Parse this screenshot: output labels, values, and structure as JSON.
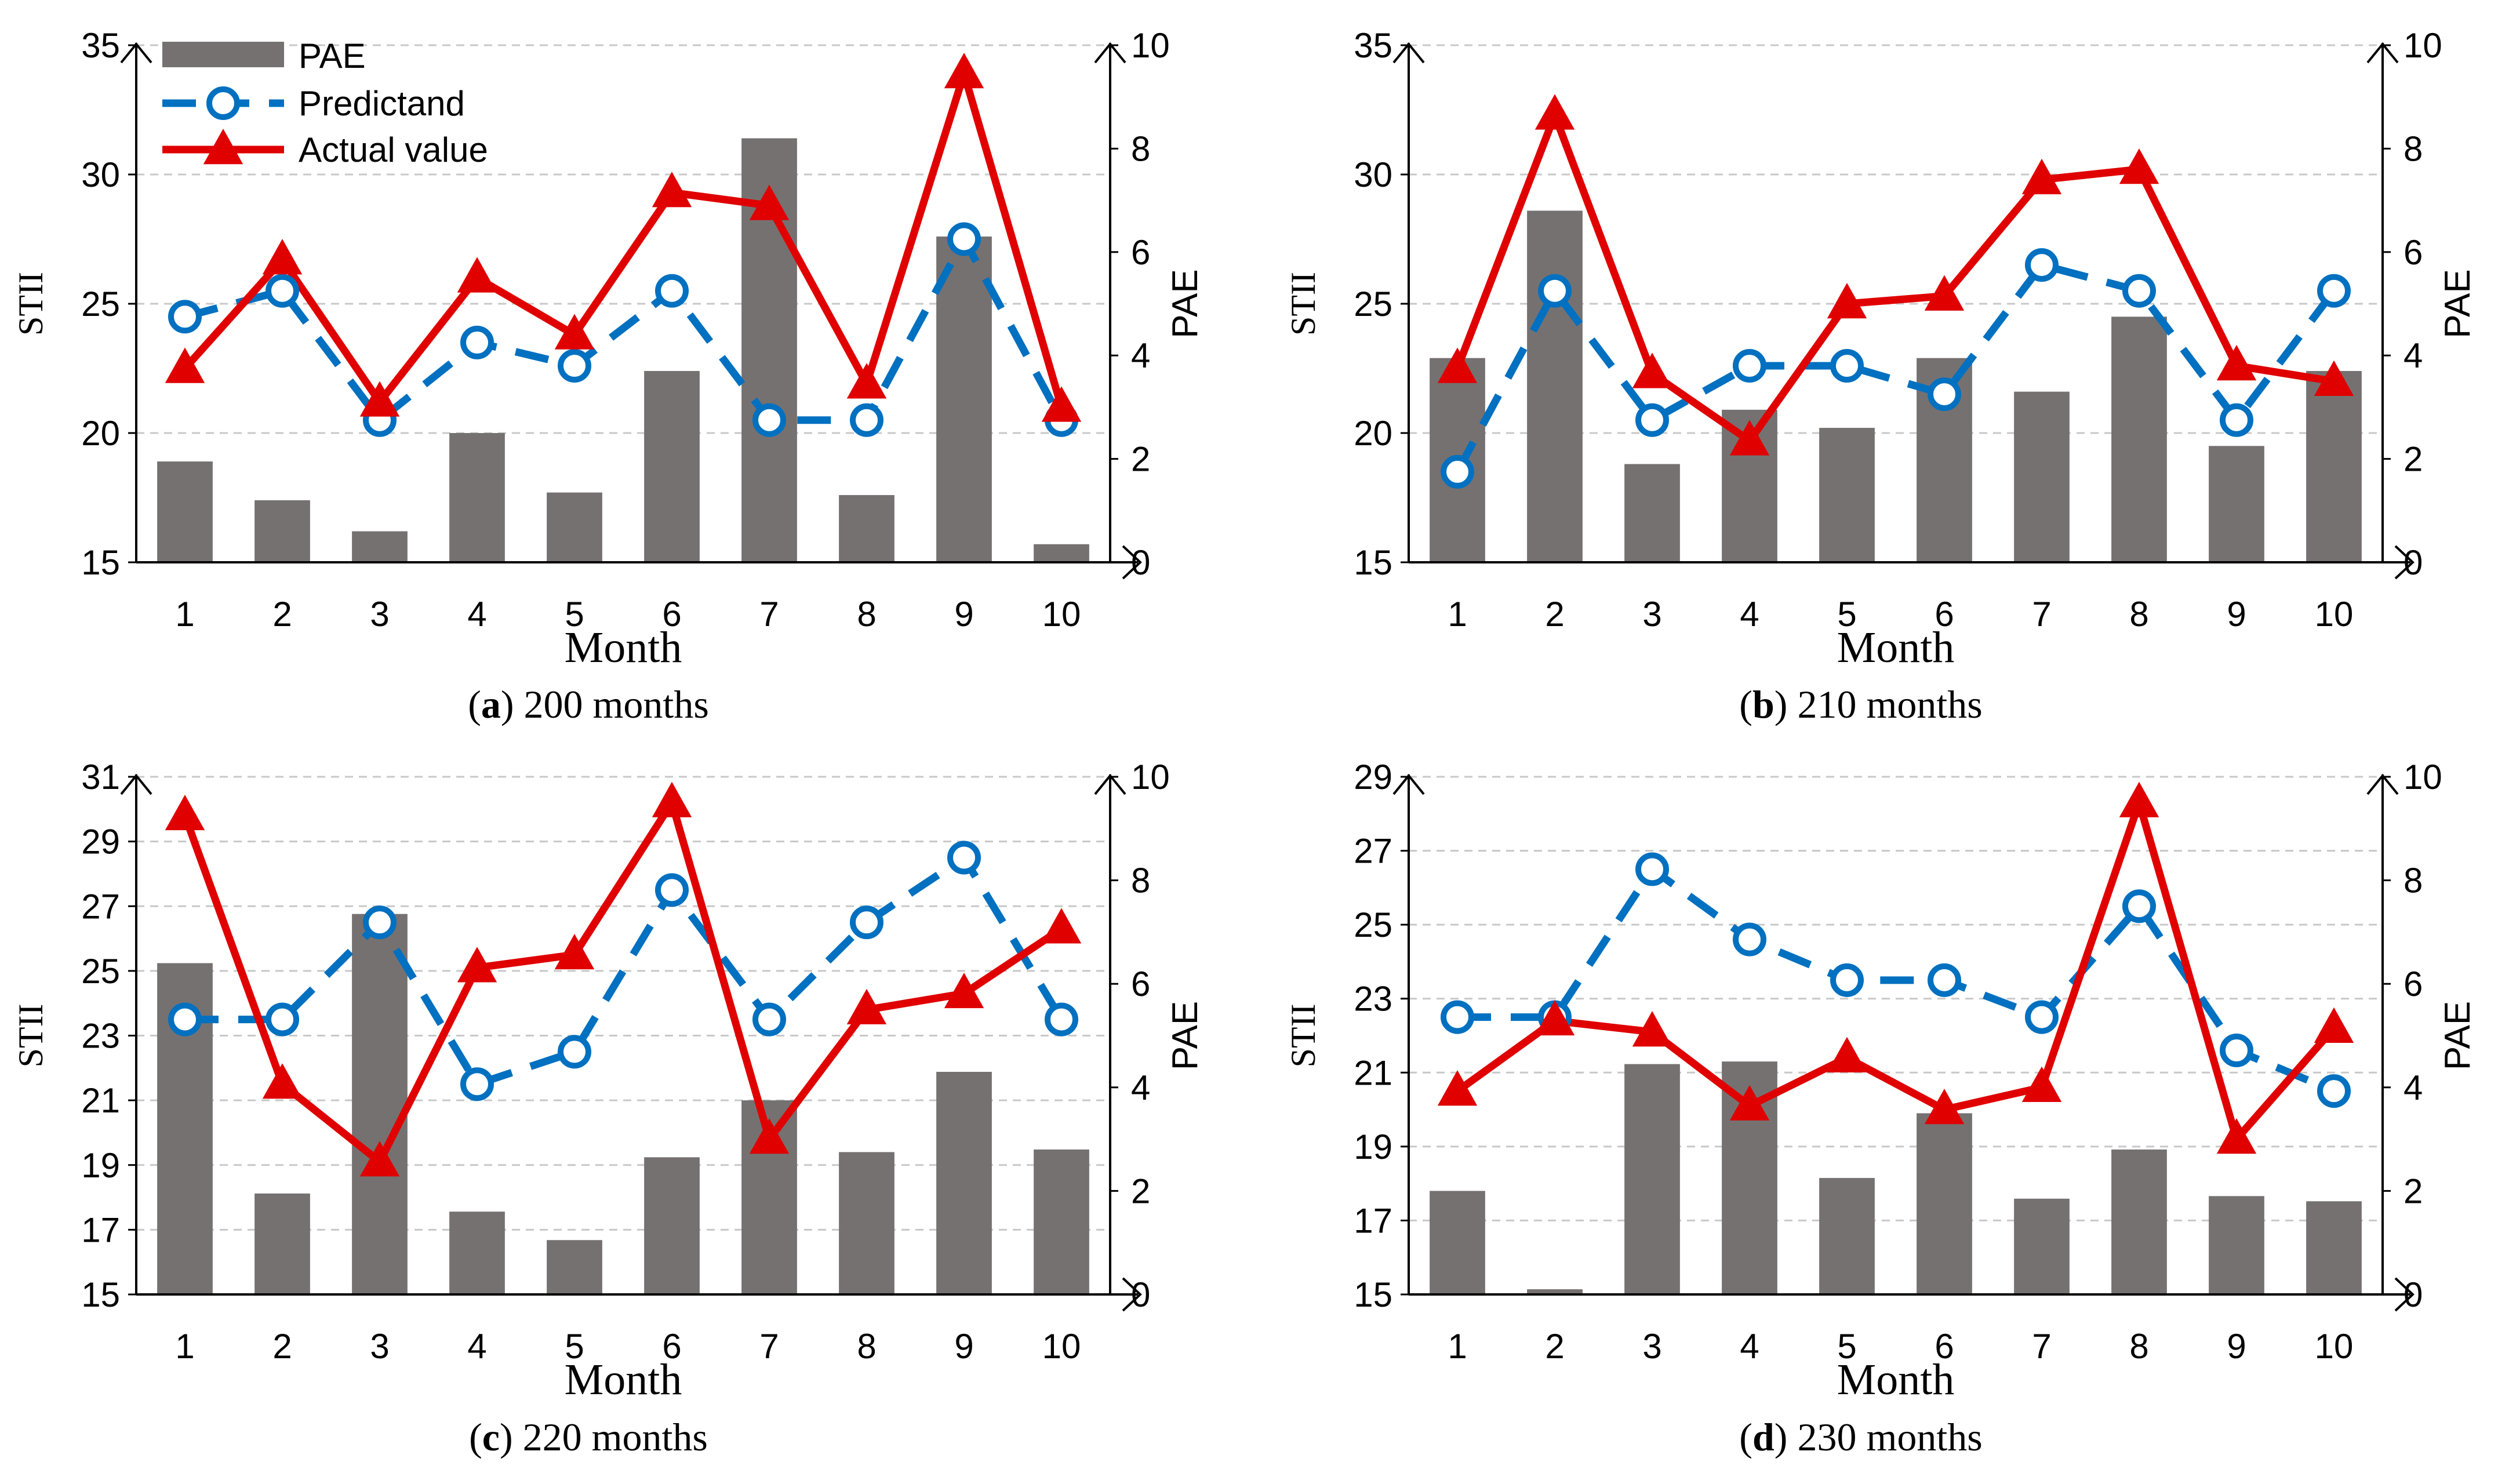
{
  "colors": {
    "bar": "#767171",
    "predictand": "#0070c0",
    "actual": "#e00000",
    "grid": "#c8c8c8",
    "axis": "#000000"
  },
  "legend": {
    "pae": "PAE",
    "predictand": "Predictand",
    "actual": "Actual value"
  },
  "chart_data": [
    {
      "type": "bar+line",
      "caption_letter": "a",
      "caption_text": " 200 months",
      "xlabel": "Month",
      "ylabel_left": "STII",
      "ylabel_right": "PAE",
      "categories": [
        "1",
        "2",
        "3",
        "4",
        "5",
        "6",
        "7",
        "8",
        "9",
        "10"
      ],
      "ylim_left": [
        15,
        35
      ],
      "yticks_left": [
        "15",
        "20",
        "25",
        "30",
        "35"
      ],
      "ylim_right": [
        0,
        10
      ],
      "yticks_right": [
        "0",
        "2",
        "4",
        "6",
        "8",
        "10"
      ],
      "series": [
        {
          "name": "PAE",
          "axis": "right",
          "kind": "bar",
          "values": [
            1.95,
            1.2,
            0.6,
            2.5,
            1.35,
            3.7,
            8.2,
            1.3,
            6.3,
            0.35
          ]
        },
        {
          "name": "Predictand",
          "axis": "left",
          "kind": "line",
          "values": [
            24.5,
            25.5,
            20.5,
            23.5,
            22.6,
            25.5,
            20.5,
            20.5,
            27.5,
            20.5
          ]
        },
        {
          "name": "Actual value",
          "axis": "left",
          "kind": "line",
          "values": [
            22.5,
            26.7,
            21.2,
            26.0,
            23.8,
            29.3,
            28.8,
            21.9,
            33.9,
            21.0
          ]
        }
      ]
    },
    {
      "type": "bar+line",
      "caption_letter": "b",
      "caption_text": " 210 months",
      "xlabel": "Month",
      "ylabel_left": "STII",
      "ylabel_right": "PAE",
      "categories": [
        "1",
        "2",
        "3",
        "4",
        "5",
        "6",
        "7",
        "8",
        "9",
        "10"
      ],
      "ylim_left": [
        15,
        35
      ],
      "yticks_left": [
        "15",
        "20",
        "25",
        "30",
        "35"
      ],
      "ylim_right": [
        0,
        10
      ],
      "yticks_right": [
        "0",
        "2",
        "4",
        "6",
        "8",
        "10"
      ],
      "series": [
        {
          "name": "PAE",
          "axis": "right",
          "kind": "bar",
          "values": [
            3.95,
            6.8,
            1.9,
            2.95,
            2.6,
            3.95,
            3.3,
            4.75,
            2.25,
            3.7
          ]
        },
        {
          "name": "Predictand",
          "axis": "left",
          "kind": "line",
          "values": [
            18.5,
            25.5,
            20.5,
            22.6,
            22.6,
            21.5,
            26.5,
            25.5,
            20.5,
            25.5
          ]
        },
        {
          "name": "Actual value",
          "axis": "left",
          "kind": "line",
          "values": [
            22.5,
            32.3,
            22.3,
            19.7,
            25.0,
            25.3,
            29.8,
            30.2,
            22.6,
            22.0
          ]
        }
      ]
    },
    {
      "type": "bar+line",
      "caption_letter": "c",
      "caption_text": " 220 months",
      "xlabel": "Month",
      "ylabel_left": "STII",
      "ylabel_right": "PAE",
      "categories": [
        "1",
        "2",
        "3",
        "4",
        "5",
        "6",
        "7",
        "8",
        "9",
        "10"
      ],
      "ylim_left": [
        15,
        31
      ],
      "yticks_left": [
        "15",
        "17",
        "19",
        "21",
        "23",
        "25",
        "27",
        "29",
        "31"
      ],
      "ylim_right": [
        0,
        10
      ],
      "yticks_right": [
        "0",
        "2",
        "4",
        "6",
        "8",
        "10"
      ],
      "series": [
        {
          "name": "PAE",
          "axis": "right",
          "kind": "bar",
          "values": [
            6.4,
            1.95,
            7.35,
            1.6,
            1.05,
            2.65,
            3.75,
            2.75,
            4.3,
            2.8
          ]
        },
        {
          "name": "Predictand",
          "axis": "left",
          "kind": "line",
          "values": [
            23.5,
            23.5,
            26.5,
            21.5,
            22.5,
            27.5,
            23.5,
            26.5,
            28.5,
            23.5
          ]
        },
        {
          "name": "Actual value",
          "axis": "left",
          "kind": "line",
          "values": [
            29.8,
            21.5,
            19.1,
            25.1,
            25.5,
            30.2,
            19.8,
            23.8,
            24.3,
            26.3
          ]
        }
      ]
    },
    {
      "type": "bar+line",
      "caption_letter": "d",
      "caption_text": " 230 months",
      "xlabel": "Month",
      "ylabel_left": "STII",
      "ylabel_right": "PAE",
      "categories": [
        "1",
        "2",
        "3",
        "4",
        "5",
        "6",
        "7",
        "8",
        "9",
        "10"
      ],
      "ylim_left": [
        15,
        29
      ],
      "yticks_left": [
        "15",
        "17",
        "19",
        "21",
        "23",
        "25",
        "27",
        "29"
      ],
      "ylim_right": [
        0,
        10
      ],
      "yticks_right": [
        "0",
        "2",
        "4",
        "6",
        "8",
        "10"
      ],
      "series": [
        {
          "name": "PAE",
          "axis": "right",
          "kind": "bar",
          "values": [
            2.0,
            0.1,
            4.45,
            4.5,
            2.25,
            3.5,
            1.85,
            2.8,
            1.9,
            1.8
          ]
        },
        {
          "name": "Predictand",
          "axis": "left",
          "kind": "line",
          "values": [
            22.5,
            22.5,
            26.5,
            24.6,
            23.5,
            23.5,
            22.5,
            25.5,
            21.6,
            20.5
          ]
        },
        {
          "name": "Actual value",
          "axis": "left",
          "kind": "line",
          "values": [
            20.5,
            22.4,
            22.1,
            20.1,
            21.4,
            20.0,
            20.6,
            28.3,
            19.2,
            22.2
          ]
        }
      ]
    }
  ]
}
